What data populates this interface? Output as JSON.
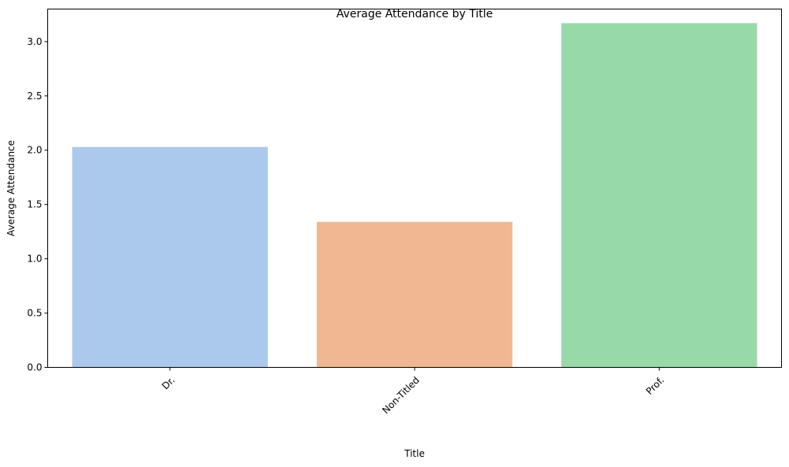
{
  "chart_data": {
    "type": "bar",
    "title": "Average Attendance by Title",
    "xlabel": "Title",
    "ylabel": "Average Attendance",
    "categories": [
      "Dr.",
      "Non-Titled",
      "Prof."
    ],
    "values": [
      2.03,
      1.34,
      3.17
    ],
    "colors": [
      "#abc9ec",
      "#efb893",
      "#98d9a8"
    ],
    "ylim": [
      0,
      3.3
    ],
    "yticks": [
      0.0,
      0.5,
      1.0,
      1.5,
      2.0,
      2.5,
      3.0
    ],
    "ytick_labels": [
      "0.0",
      "0.5",
      "1.0",
      "1.5",
      "2.0",
      "2.5",
      "3.0"
    ],
    "xtick_rotation": 45,
    "grid": false,
    "legend": "none"
  }
}
